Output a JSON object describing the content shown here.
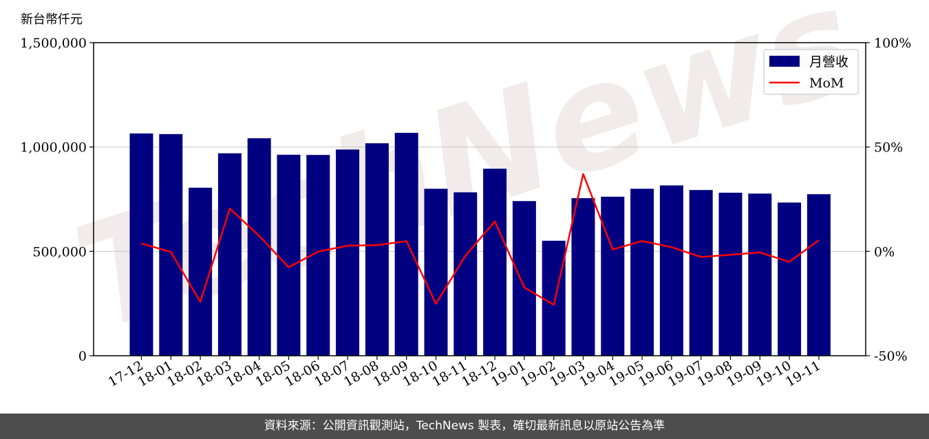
{
  "chart_data": {
    "type": "bar",
    "ylabel": "新台幣仟元",
    "categories": [
      "17-12",
      "18-01",
      "18-02",
      "18-03",
      "18-04",
      "18-05",
      "18-06",
      "18-07",
      "18-08",
      "18-09",
      "18-10",
      "18-11",
      "18-12",
      "19-01",
      "19-02",
      "19-03",
      "19-04",
      "19-05",
      "19-06",
      "19-07",
      "19-08",
      "19-09",
      "19-10",
      "19-11"
    ],
    "series": [
      {
        "name": "月營收",
        "axis": "left",
        "color": "#000080",
        "values": [
          1065000,
          1062000,
          805000,
          970000,
          1042000,
          963000,
          962000,
          988000,
          1018000,
          1068000,
          800000,
          783000,
          896000,
          741000,
          551000,
          755000,
          762000,
          800000,
          816000,
          794000,
          781000,
          777000,
          734000,
          774000
        ]
      },
      {
        "name": "MoM",
        "axis": "right",
        "color": "#ff0000",
        "type": "line",
        "values": [
          3.8,
          -0.3,
          -24.2,
          20.5,
          7.4,
          -7.6,
          -0.1,
          2.7,
          3.0,
          4.9,
          -25.1,
          -2.1,
          14.4,
          -17.3,
          -25.6,
          37.1,
          0.9,
          5.0,
          2.0,
          -2.7,
          -1.6,
          -0.5,
          -5.0,
          5.4
        ]
      }
    ],
    "yticks_left": [
      "0",
      "500,000",
      "1,000,000",
      "1,500,000"
    ],
    "ylim_left": [
      0,
      1500000
    ],
    "yticks_right": [
      "-50%",
      "0%",
      "50%",
      "100%"
    ],
    "ylim_right": [
      -50,
      100
    ],
    "grid": "horizontal",
    "legend_position": "top-right"
  },
  "watermark": "TechNews",
  "footer": {
    "source": "資料來源：公開資訊觀測站，TechNews 製表，確切最新訊息以原站公告為準"
  }
}
